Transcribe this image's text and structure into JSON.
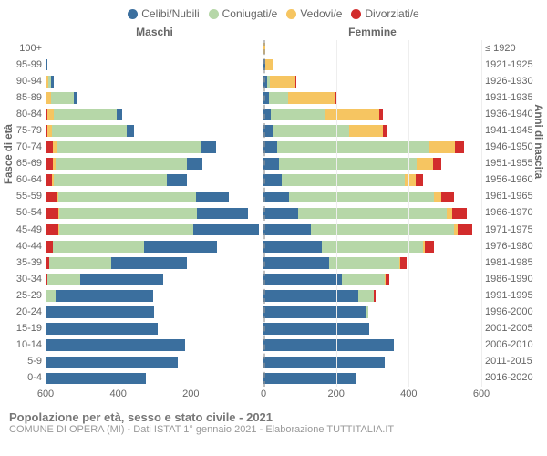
{
  "legend": [
    {
      "label": "Celibi/Nubili",
      "color": "#3b6f9e"
    },
    {
      "label": "Coniugati/e",
      "color": "#b6d7a8"
    },
    {
      "label": "Vedovi/e",
      "color": "#f6c561"
    },
    {
      "label": "Divorziati/e",
      "color": "#d22c2c"
    }
  ],
  "header_male": "Maschi",
  "header_female": "Femmine",
  "y_left_title": "Fasce di età",
  "y_right_title": "Anni di nascita",
  "x_ticks": [
    600,
    400,
    200,
    0,
    200,
    400,
    600
  ],
  "x_max": 600,
  "footer_title": "Popolazione per età, sesso e stato civile - 2021",
  "footer_sub": "COMUNE DI OPERA (MI) - Dati ISTAT 1° gennaio 2021 - Elaborazione TUTTITALIA.IT",
  "colors": {
    "celibi": "#3b6f9e",
    "coniugati": "#b6d7a8",
    "vedovi": "#f6c561",
    "divorziati": "#d22c2c",
    "axis_text": "#666",
    "grid": "#eee",
    "centerline": "rgba(150,150,150,0.6)"
  },
  "rows": [
    {
      "age": "100+",
      "birth": "≤ 1920",
      "m": [
        0,
        0,
        0,
        0
      ],
      "f": [
        0,
        0,
        6,
        0
      ]
    },
    {
      "age": "95-99",
      "birth": "1921-1925",
      "m": [
        3,
        0,
        3,
        0
      ],
      "f": [
        4,
        0,
        22,
        0
      ]
    },
    {
      "age": "90-94",
      "birth": "1926-1930",
      "m": [
        6,
        8,
        8,
        0
      ],
      "f": [
        10,
        7,
        70,
        2
      ]
    },
    {
      "age": "85-89",
      "birth": "1931-1935",
      "m": [
        10,
        62,
        13,
        2
      ],
      "f": [
        14,
        55,
        130,
        5
      ]
    },
    {
      "age": "80-84",
      "birth": "1936-1940",
      "m": [
        15,
        175,
        18,
        4
      ],
      "f": [
        20,
        150,
        150,
        8
      ]
    },
    {
      "age": "75-79",
      "birth": "1941-1945",
      "m": [
        20,
        205,
        12,
        6
      ],
      "f": [
        25,
        210,
        95,
        10
      ]
    },
    {
      "age": "70-74",
      "birth": "1946-1950",
      "m": [
        40,
        400,
        10,
        20
      ],
      "f": [
        38,
        420,
        70,
        25
      ]
    },
    {
      "age": "65-69",
      "birth": "1951-1955",
      "m": [
        45,
        360,
        8,
        20
      ],
      "f": [
        42,
        380,
        45,
        22
      ]
    },
    {
      "age": "60-64",
      "birth": "1956-1960",
      "m": [
        55,
        310,
        5,
        18
      ],
      "f": [
        50,
        340,
        30,
        20
      ]
    },
    {
      "age": "55-59",
      "birth": "1961-1965",
      "m": [
        90,
        380,
        4,
        30
      ],
      "f": [
        70,
        400,
        20,
        35
      ]
    },
    {
      "age": "50-54",
      "birth": "1966-1970",
      "m": [
        140,
        380,
        3,
        35
      ],
      "f": [
        95,
        410,
        15,
        40
      ]
    },
    {
      "age": "45-49",
      "birth": "1971-1975",
      "m": [
        180,
        370,
        2,
        35
      ],
      "f": [
        130,
        395,
        10,
        40
      ]
    },
    {
      "age": "40-44",
      "birth": "1976-1980",
      "m": [
        200,
        250,
        1,
        20
      ],
      "f": [
        160,
        280,
        5,
        25
      ]
    },
    {
      "age": "35-39",
      "birth": "1981-1985",
      "m": [
        210,
        170,
        0,
        10
      ],
      "f": [
        180,
        195,
        2,
        18
      ]
    },
    {
      "age": "30-34",
      "birth": "1986-1990",
      "m": [
        230,
        90,
        0,
        5
      ],
      "f": [
        215,
        120,
        1,
        10
      ]
    },
    {
      "age": "25-29",
      "birth": "1991-1995",
      "m": [
        270,
        25,
        0,
        2
      ],
      "f": [
        260,
        45,
        0,
        3
      ]
    },
    {
      "age": "20-24",
      "birth": "1996-2000",
      "m": [
        295,
        3,
        0,
        0
      ],
      "f": [
        280,
        8,
        0,
        0
      ]
    },
    {
      "age": "15-19",
      "birth": "2001-2005",
      "m": [
        310,
        0,
        0,
        0
      ],
      "f": [
        290,
        0,
        0,
        0
      ]
    },
    {
      "age": "10-14",
      "birth": "2006-2010",
      "m": [
        385,
        0,
        0,
        0
      ],
      "f": [
        360,
        0,
        0,
        0
      ]
    },
    {
      "age": "5-9",
      "birth": "2011-2015",
      "m": [
        365,
        0,
        0,
        0
      ],
      "f": [
        335,
        0,
        0,
        0
      ]
    },
    {
      "age": "0-4",
      "birth": "2016-2020",
      "m": [
        275,
        0,
        0,
        0
      ],
      "f": [
        255,
        0,
        0,
        0
      ]
    }
  ]
}
